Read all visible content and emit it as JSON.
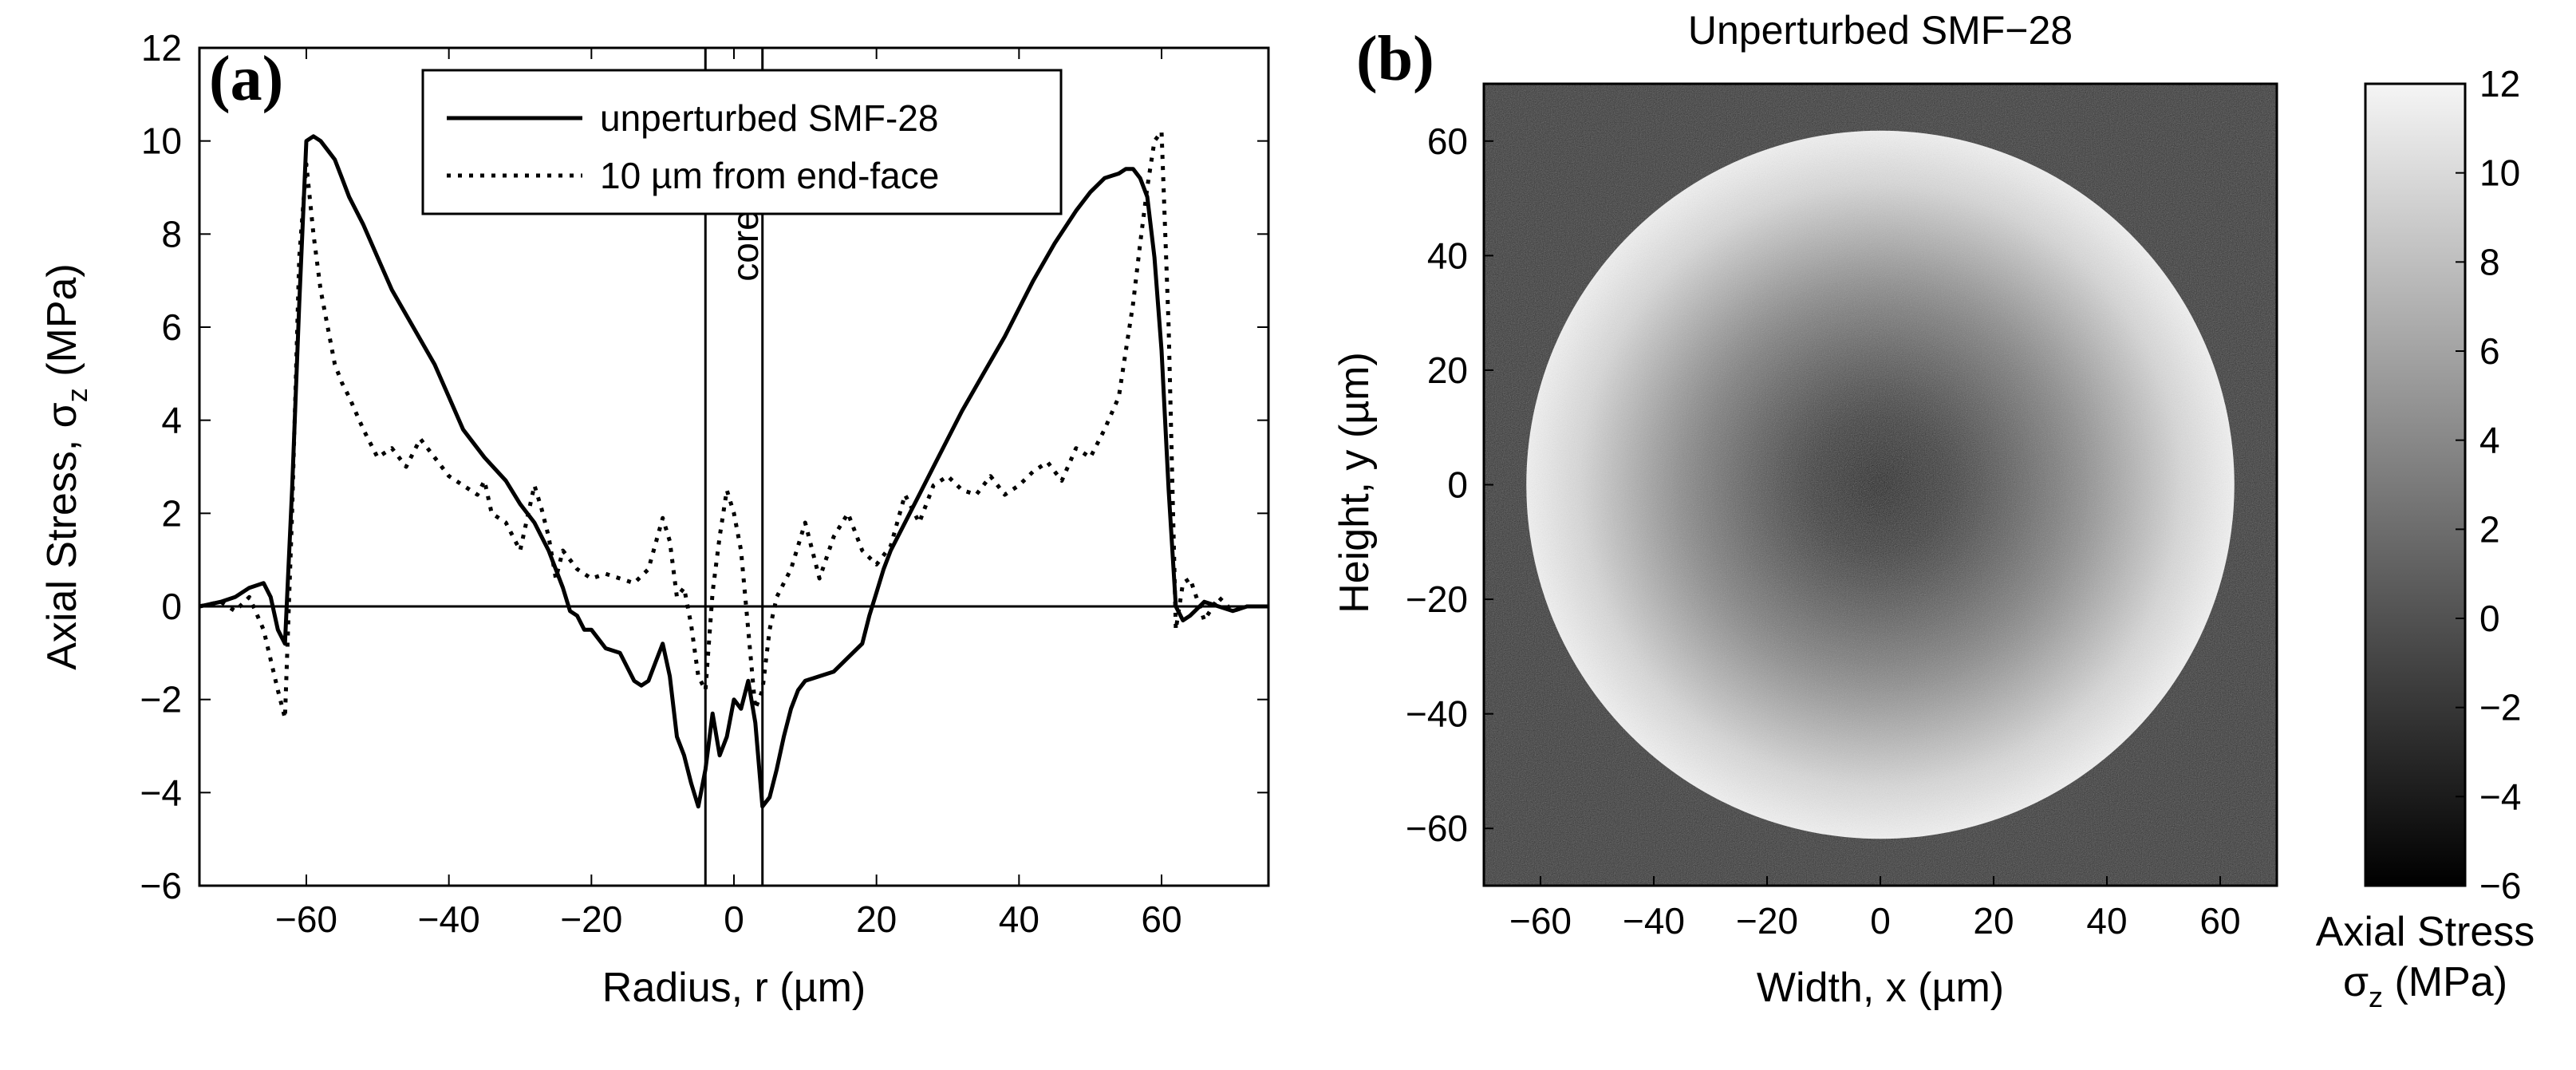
{
  "chart_data": [
    {
      "panel": "(a)",
      "type": "line",
      "title": "",
      "xlabel": "Radius, r (µm)",
      "ylabel": "Axial Stress, σ",
      "ylabel_sub": "z",
      "ylabel_unit": " (MPa)",
      "xlim": [
        -75,
        75
      ],
      "ylim": [
        -6,
        12
      ],
      "xticks": [
        -60,
        -40,
        -20,
        0,
        20,
        40,
        60
      ],
      "yticks": [
        -6,
        -4,
        -2,
        0,
        2,
        4,
        6,
        8,
        10,
        12
      ],
      "grid": false,
      "legend_position": "top-right",
      "annotation": "core",
      "core_boundaries": [
        -4,
        4
      ],
      "series": [
        {
          "name": "unperturbed SMF-28",
          "style": "solid",
          "x": [
            -75,
            -72,
            -70,
            -68,
            -66,
            -65,
            -64,
            -63,
            -62,
            -61,
            -60,
            -59,
            -58,
            -57,
            -56,
            -55,
            -54,
            -52,
            -50,
            -48,
            -45,
            -42,
            -40,
            -38,
            -35,
            -32,
            -30,
            -28,
            -26,
            -24,
            -23,
            -22,
            -21,
            -20,
            -18,
            -16,
            -14,
            -13,
            -12,
            -11,
            -10,
            -9,
            -8,
            -7,
            -6,
            -5,
            -4,
            -3,
            -2,
            -1,
            0,
            1,
            2,
            3,
            4,
            5,
            6,
            7,
            8,
            9,
            10,
            12,
            14,
            16,
            18,
            19,
            20,
            21,
            22,
            24,
            26,
            28,
            30,
            32,
            35,
            38,
            40,
            42,
            45,
            48,
            50,
            52,
            54,
            55,
            56,
            57,
            58,
            59,
            60,
            61,
            62,
            63,
            64,
            66,
            68,
            70,
            72,
            75
          ],
          "y": [
            0,
            0.1,
            0.2,
            0.4,
            0.5,
            0.2,
            -0.5,
            -0.8,
            2.5,
            6.5,
            10,
            10.1,
            10,
            9.8,
            9.6,
            9.2,
            8.8,
            8.2,
            7.5,
            6.8,
            6,
            5.2,
            4.5,
            3.8,
            3.2,
            2.7,
            2.2,
            1.8,
            1.2,
            0.4,
            -0.1,
            -0.2,
            -0.5,
            -0.5,
            -0.9,
            -1,
            -1.6,
            -1.7,
            -1.6,
            -1.2,
            -0.8,
            -1.5,
            -2.8,
            -3.2,
            -3.8,
            -4.3,
            -3.5,
            -2.3,
            -3.2,
            -2.8,
            -2,
            -2.2,
            -1.6,
            -2.5,
            -4.3,
            -4.1,
            -3.5,
            -2.8,
            -2.2,
            -1.8,
            -1.6,
            -1.5,
            -1.4,
            -1.1,
            -0.8,
            -0.2,
            0.3,
            0.8,
            1.2,
            1.8,
            2.4,
            3,
            3.6,
            4.2,
            5,
            5.8,
            6.4,
            7,
            7.8,
            8.5,
            8.9,
            9.2,
            9.3,
            9.4,
            9.4,
            9.2,
            8.8,
            7.5,
            5.5,
            2.5,
            0,
            -0.3,
            -0.2,
            0.1,
            0,
            -0.1,
            0,
            0
          ]
        },
        {
          "name": "10 µm from end-face",
          "style": "dotted",
          "x": [
            -75,
            -72,
            -70,
            -68,
            -66,
            -64,
            -63,
            -62,
            -61,
            -60,
            -59,
            -58,
            -57,
            -56,
            -55,
            -54,
            -52,
            -50,
            -48,
            -46,
            -44,
            -42,
            -40,
            -38,
            -36,
            -35,
            -34,
            -32,
            -30,
            -28,
            -27,
            -26,
            -25,
            -24,
            -22,
            -20,
            -18,
            -16,
            -14,
            -12,
            -10,
            -9,
            -8,
            -7,
            -6,
            -5,
            -4,
            -3,
            -2,
            -1,
            0,
            1,
            2,
            3,
            4,
            5,
            6,
            7,
            8,
            10,
            12,
            14,
            16,
            18,
            20,
            22,
            24,
            26,
            28,
            30,
            32,
            34,
            36,
            38,
            40,
            42,
            44,
            46,
            48,
            50,
            52,
            54,
            55,
            56,
            57,
            58,
            59,
            60,
            61,
            62,
            63,
            64,
            66,
            68,
            70,
            72,
            75
          ],
          "y": [
            0,
            0.1,
            -0.1,
            0.2,
            -0.5,
            -1.8,
            -2.4,
            2,
            7.5,
            9.5,
            8,
            6.8,
            6,
            5.2,
            4.8,
            4.5,
            3.8,
            3.2,
            3.4,
            3.0,
            3.6,
            3.2,
            2.8,
            2.6,
            2.4,
            2.7,
            2,
            1.8,
            1.2,
            2.6,
            2.1,
            1.5,
            0.6,
            1.2,
            0.8,
            0.6,
            0.7,
            0.6,
            0.5,
            0.8,
            1.9,
            1.4,
            0.2,
            0.4,
            -0.4,
            -1.5,
            -1.8,
            0.3,
            1.5,
            2.5,
            2,
            1.2,
            -0.5,
            -2.2,
            -1.8,
            -0.5,
            0.2,
            0.5,
            0.8,
            1.8,
            0.6,
            1.5,
            2,
            1.2,
            0.9,
            1.3,
            2.4,
            1.8,
            2.6,
            2.8,
            2.5,
            2.4,
            2.8,
            2.4,
            2.6,
            2.9,
            3.1,
            2.7,
            3.4,
            3.2,
            3.8,
            4.5,
            5.5,
            6.5,
            7.8,
            9,
            10,
            10.2,
            6,
            -0.5,
            0.5,
            0.6,
            -0.3,
            0.2,
            -0.1,
            0,
            0
          ]
        }
      ]
    },
    {
      "panel": "(b)",
      "type": "heatmap",
      "title": "Unperturbed SMF−28",
      "xlabel": "Width, x (µm)",
      "ylabel": "Height, y (µm)",
      "xlim": [
        -70,
        70
      ],
      "ylim": [
        -70,
        70
      ],
      "xticks": [
        -60,
        -40,
        -20,
        0,
        20,
        40,
        60
      ],
      "yticks": [
        60,
        40,
        20,
        0,
        -20,
        -40,
        -60
      ],
      "fiber_radius": 62.5,
      "colorbar": {
        "label_line1": "Axial Stress",
        "label_line2": "σ",
        "label_sub": "z",
        "label_unit": " (MPa)",
        "range": [
          -6,
          12
        ],
        "ticks": [
          12,
          10,
          8,
          6,
          4,
          2,
          0,
          -2,
          -4,
          -6
        ]
      },
      "colors": {
        "background": "#333333",
        "fiber_edge": "#f2f2f2",
        "fiber_center": "#1a1a1a"
      }
    }
  ]
}
